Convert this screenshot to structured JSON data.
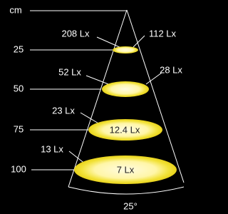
{
  "distance_unit": "cm",
  "rings": [
    {
      "distance": "25",
      "center_lux": "208 Lx",
      "edge_lux": "112 Lx"
    },
    {
      "distance": "50",
      "center_lux": "52 Lx",
      "edge_lux": "28 Lx"
    },
    {
      "distance": "75",
      "center_lux": "23 Lx",
      "edge_lux": "12.4 Lx"
    },
    {
      "distance": "100",
      "center_lux": "13 Lx",
      "edge_lux": "7 Lx"
    }
  ],
  "beam_angle": "25°"
}
